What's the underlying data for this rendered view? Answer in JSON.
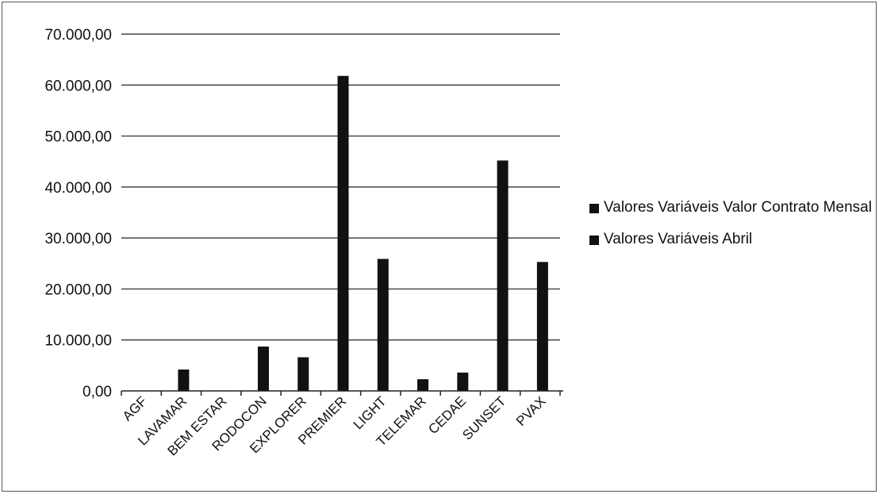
{
  "chart_data": {
    "type": "bar",
    "title": "",
    "xlabel": "",
    "ylabel": "",
    "ylim": [
      0,
      70000
    ],
    "yticks": [
      0,
      10000,
      20000,
      30000,
      40000,
      50000,
      60000,
      70000
    ],
    "ytick_labels": [
      "0,00",
      "10.000,00",
      "20.000,00",
      "30.000,00",
      "40.000,00",
      "50.000,00",
      "60.000,00",
      "70.000,00"
    ],
    "categories": [
      "AGF",
      "LAVAMAR",
      "BEM ESTAR",
      "RODOCON",
      "EXPLORER",
      "PREMIER",
      "LIGHT",
      "TELEMAR",
      "CEDAE",
      "SUNSET",
      "PVAX"
    ],
    "series": [
      {
        "name": "Valores Variáveis Valor Contrato Mensal",
        "color": "#111111",
        "values": [
          0,
          0,
          0,
          0,
          0,
          0,
          0,
          0,
          0,
          0,
          0
        ]
      },
      {
        "name": "Valores Variáveis Abril",
        "color": "#111111",
        "values": [
          0,
          4200,
          0,
          8700,
          6600,
          61800,
          25900,
          2300,
          3600,
          45200,
          25300
        ]
      }
    ],
    "grid": true,
    "legend_position": "right"
  }
}
